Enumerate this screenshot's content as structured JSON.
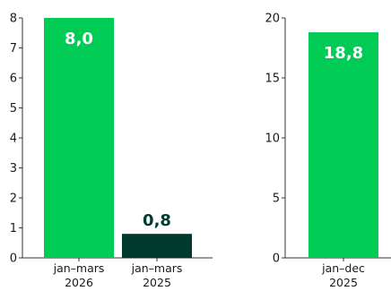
{
  "colors": {
    "green": "#00cc55",
    "dark": "#003a2f",
    "white": "#ffffff"
  },
  "chart_data": [
    {
      "type": "bar",
      "categories": [
        [
          "jan–mars",
          "2026"
        ],
        [
          "jan–mars",
          "2025"
        ]
      ],
      "values": [
        8.0,
        0.8
      ],
      "data_labels": [
        "8,0",
        "0,8"
      ],
      "bar_colors": [
        "#00cc55",
        "#003a2f"
      ],
      "label_positions": [
        "inside",
        "above"
      ],
      "ylim": [
        0,
        8
      ],
      "yticks": [
        0,
        1,
        2,
        3,
        4,
        5,
        6,
        7,
        8
      ],
      "title": "",
      "xlabel": "",
      "ylabel": "",
      "grid": false
    },
    {
      "type": "bar",
      "categories": [
        [
          "jan–dec",
          "2025"
        ]
      ],
      "values": [
        18.8
      ],
      "data_labels": [
        "18,8"
      ],
      "bar_colors": [
        "#00cc55"
      ],
      "label_positions": [
        "inside"
      ],
      "ylim": [
        0,
        20
      ],
      "yticks": [
        0,
        5,
        10,
        15,
        20
      ],
      "title": "",
      "xlabel": "",
      "ylabel": "",
      "grid": false
    }
  ]
}
